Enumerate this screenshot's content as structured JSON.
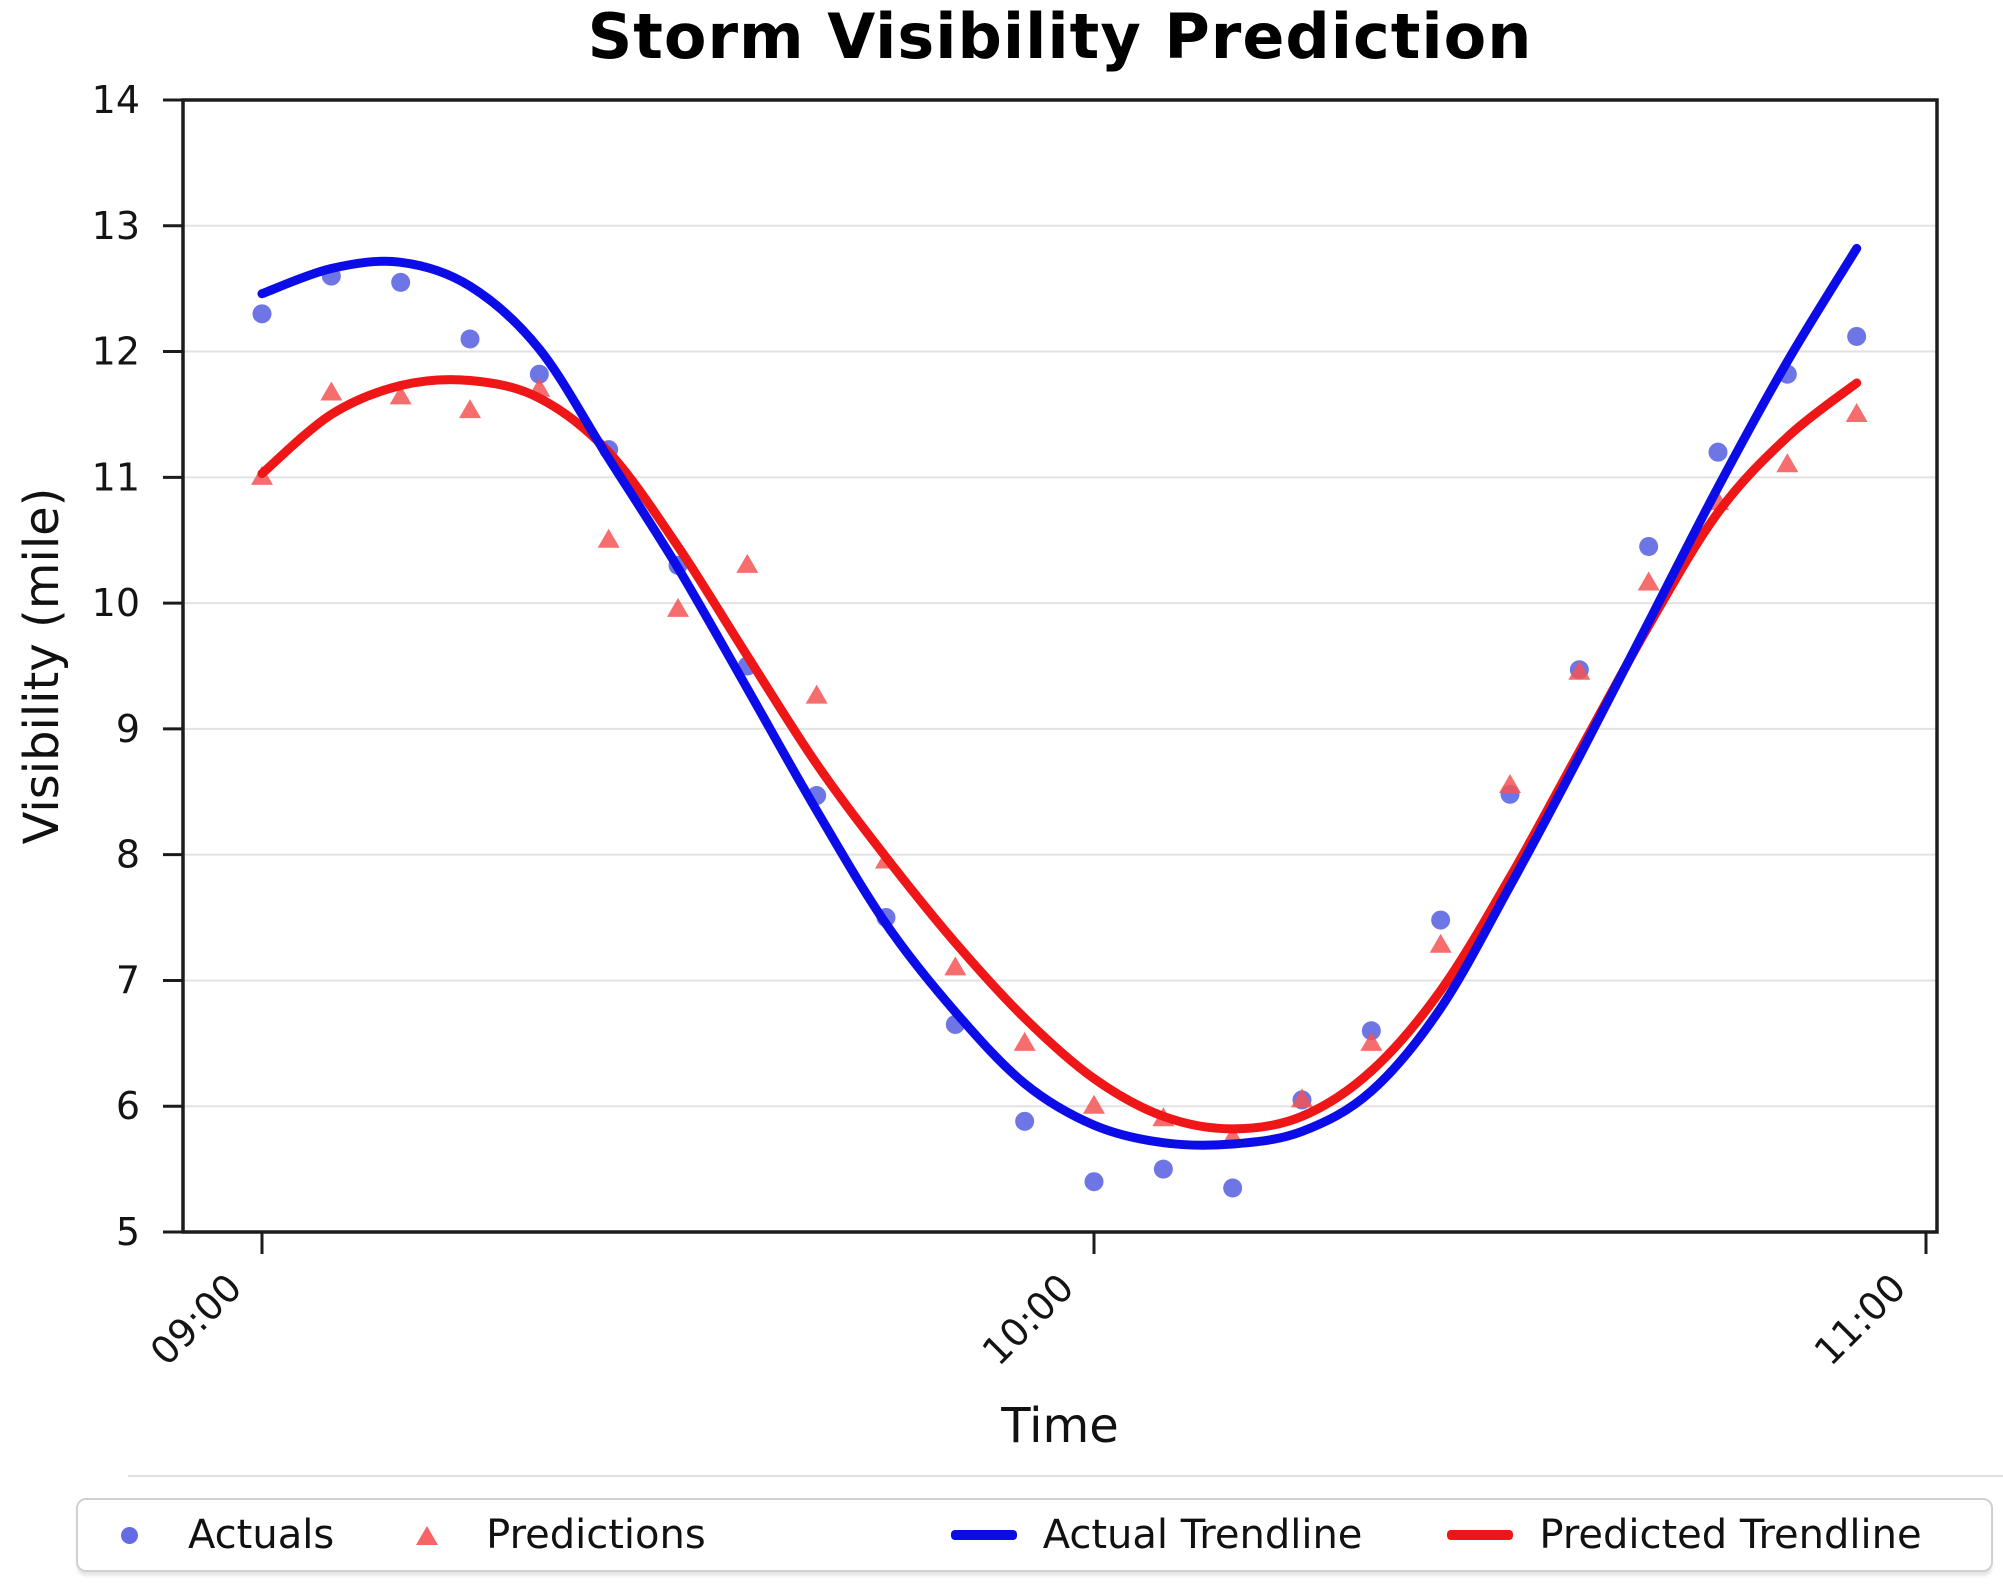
{
  "chart": {
    "title": "Storm Visibility Prediction",
    "xlabel": "Time",
    "ylabel": "Visibility (mile)"
  },
  "chart_data": {
    "type": "scatter",
    "title": "Storm Visibility Prediction",
    "xlabel": "Time",
    "ylabel": "Visibility (mile)",
    "ylim": [
      5,
      14
    ],
    "y_ticks": [
      5,
      6,
      7,
      8,
      9,
      10,
      11,
      12,
      13,
      14
    ],
    "x_ticks": [
      {
        "minute": 0,
        "label": "09:00"
      },
      {
        "minute": 60,
        "label": "10:00"
      },
      {
        "minute": 120,
        "label": "11:00"
      }
    ],
    "grid": "horizontal-only",
    "legend_position": "bottom",
    "x_minutes": [
      0,
      5,
      10,
      15,
      20,
      25,
      30,
      35,
      40,
      45,
      50,
      55,
      60,
      65,
      70,
      75,
      80,
      85,
      90,
      95,
      100,
      105,
      110,
      115
    ],
    "x_labels": [
      "09:00",
      "09:05",
      "09:10",
      "09:15",
      "09:20",
      "09:25",
      "09:30",
      "09:35",
      "09:40",
      "09:45",
      "09:50",
      "09:55",
      "10:00",
      "10:05",
      "10:10",
      "10:15",
      "10:20",
      "10:25",
      "10:30",
      "10:35",
      "10:40",
      "10:45",
      "10:50",
      "10:55"
    ],
    "series": [
      {
        "name": "Actuals",
        "kind": "scatter",
        "marker": "circle",
        "color": "#4a52de",
        "opacity": 0.8,
        "values": [
          12.3,
          12.6,
          12.55,
          12.1,
          11.82,
          11.22,
          10.3,
          9.5,
          8.47,
          7.5,
          6.65,
          5.88,
          5.4,
          5.5,
          5.35,
          6.05,
          6.6,
          7.48,
          8.48,
          9.47,
          10.45,
          11.2,
          11.82,
          12.12
        ]
      },
      {
        "name": "Predictions",
        "kind": "scatter",
        "marker": "triangle",
        "color": "#f55353",
        "opacity": 0.85,
        "values": [
          11.0,
          11.67,
          11.64,
          11.53,
          11.7,
          10.5,
          9.95,
          10.3,
          9.26,
          7.95,
          7.1,
          6.5,
          6.0,
          5.9,
          5.75,
          6.05,
          6.5,
          7.28,
          8.55,
          9.45,
          10.16,
          10.8,
          11.1,
          11.5
        ]
      },
      {
        "name": "Predicted Trendline",
        "kind": "line",
        "color": "#ee1616",
        "stroke_width": 9,
        "values": [
          11.03,
          11.5,
          11.73,
          11.77,
          11.63,
          11.2,
          10.45,
          9.58,
          8.72,
          7.98,
          7.3,
          6.7,
          6.22,
          5.92,
          5.82,
          5.92,
          6.28,
          6.92,
          7.82,
          8.82,
          9.82,
          10.72,
          11.32,
          11.75
        ]
      },
      {
        "name": "Actual Trendline",
        "kind": "line",
        "color": "#0c0ce8",
        "stroke_width": 9,
        "values": [
          12.46,
          12.66,
          12.71,
          12.52,
          12.02,
          11.15,
          10.28,
          9.32,
          8.35,
          7.45,
          6.75,
          6.18,
          5.85,
          5.71,
          5.7,
          5.8,
          6.12,
          6.78,
          7.75,
          8.78,
          9.85,
          10.92,
          11.92,
          12.82
        ]
      }
    ]
  },
  "legend": {
    "items": [
      {
        "label": "Actuals",
        "marker": "circle",
        "color": "#4a52de"
      },
      {
        "label": "Predictions",
        "marker": "triangle",
        "color": "#f55353"
      },
      {
        "label": "Actual Trendline",
        "marker": "line",
        "color": "#0c0ce8"
      },
      {
        "label": "Predicted Trendline",
        "marker": "line",
        "color": "#ee1616"
      }
    ]
  }
}
